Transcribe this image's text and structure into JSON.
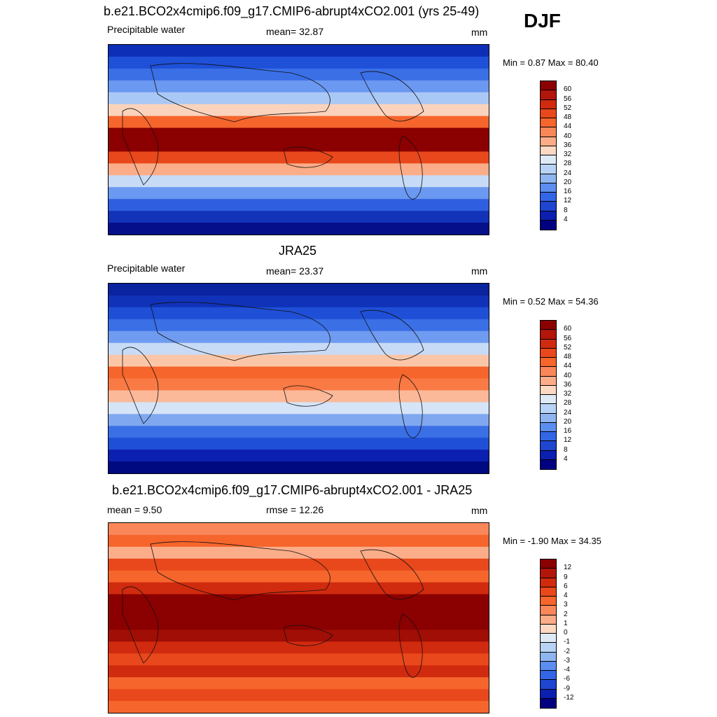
{
  "season": "DJF",
  "panels": [
    {
      "title": "b.e21.BCO2x4cmip6.f09_g17.CMIP6-abrupt4xCO2.001 (yrs 25-49)",
      "left_label": "Precipitable water",
      "stat_label": "mean=  32.87",
      "units": "mm",
      "minmax": "Min =   0.87 Max =  80.40",
      "colorbar": {
        "labels": [
          "60",
          "56",
          "52",
          "48",
          "44",
          "40",
          "36",
          "32",
          "28",
          "24",
          "20",
          "16",
          "12",
          "8",
          "4"
        ],
        "colors": [
          "#8b0000",
          "#b2150a",
          "#d02a0f",
          "#e8481b",
          "#f5652c",
          "#f9875a",
          "#fbac88",
          "#fdd9c4",
          "#deebf7",
          "#b8d3f5",
          "#8fb6f0",
          "#5b8ef0",
          "#3366e6",
          "#1f45d1",
          "#0b1fb0",
          "#000080"
        ]
      },
      "rows": [
        {
          "c": "#0d2fb8",
          "x0": 0,
          "x1": 100
        },
        {
          "c": "#1e50d8",
          "x0": 0,
          "x1": 100
        },
        {
          "c": "#3a6fe6",
          "x0": 0,
          "x1": 100
        },
        {
          "c": "#6b98f0",
          "x0": 0,
          "x1": 100
        },
        {
          "c": "#aac8f5",
          "x0": 0,
          "x1": 100
        },
        {
          "c": "#fbd3bc",
          "x0": 0,
          "x1": 100
        },
        {
          "c": "#f5652c",
          "x0": 0,
          "x1": 100
        },
        {
          "c": "#8b0000",
          "x0": 0,
          "x1": 100
        },
        {
          "c": "#8b0000",
          "x0": 0,
          "x1": 100
        },
        {
          "c": "#e8481b",
          "x0": 0,
          "x1": 100
        },
        {
          "c": "#fbac88",
          "x0": 0,
          "x1": 100
        },
        {
          "c": "#c7dbf7",
          "x0": 0,
          "x1": 100
        },
        {
          "c": "#6b98f0",
          "x0": 0,
          "x1": 100
        },
        {
          "c": "#2f5fe0",
          "x0": 0,
          "x1": 100
        },
        {
          "c": "#1233b8",
          "x0": 0,
          "x1": 100
        },
        {
          "c": "#050f8a",
          "x0": 0,
          "x1": 100
        }
      ]
    },
    {
      "title": "JRA25",
      "left_label": "Precipitable water",
      "stat_label": "mean=  23.37",
      "units": "mm",
      "minmax": "Min =   0.52 Max =  54.36",
      "colorbar": {
        "labels": [
          "60",
          "56",
          "52",
          "48",
          "44",
          "40",
          "36",
          "32",
          "28",
          "24",
          "20",
          "16",
          "12",
          "8",
          "4"
        ],
        "colors": [
          "#8b0000",
          "#b2150a",
          "#d02a0f",
          "#e8481b",
          "#f5652c",
          "#f9875a",
          "#fbac88",
          "#fdd9c4",
          "#deebf7",
          "#b8d3f5",
          "#8fb6f0",
          "#5b8ef0",
          "#3366e6",
          "#1f45d1",
          "#0b1fb0",
          "#000080"
        ]
      },
      "rows": [
        {
          "c": "#0a239e",
          "x0": 0,
          "x1": 100
        },
        {
          "c": "#0f32b8",
          "x0": 0,
          "x1": 100
        },
        {
          "c": "#1f4fd6",
          "x0": 0,
          "x1": 100
        },
        {
          "c": "#3a6fe6",
          "x0": 0,
          "x1": 100
        },
        {
          "c": "#6f9bf0",
          "x0": 0,
          "x1": 100
        },
        {
          "c": "#c7dbf7",
          "x0": 0,
          "x1": 100
        },
        {
          "c": "#fbc6a8",
          "x0": 0,
          "x1": 100
        },
        {
          "c": "#f5652c",
          "x0": 0,
          "x1": 100
        },
        {
          "c": "#f97a44",
          "x0": 0,
          "x1": 100
        },
        {
          "c": "#fbb999",
          "x0": 0,
          "x1": 100
        },
        {
          "c": "#d6e4f7",
          "x0": 0,
          "x1": 100
        },
        {
          "c": "#7fa8f0",
          "x0": 0,
          "x1": 100
        },
        {
          "c": "#3a6fe6",
          "x0": 0,
          "x1": 100
        },
        {
          "c": "#1f4fd6",
          "x0": 0,
          "x1": 100
        },
        {
          "c": "#0b1fb0",
          "x0": 0,
          "x1": 100
        },
        {
          "c": "#000a80",
          "x0": 0,
          "x1": 100
        }
      ]
    },
    {
      "title": "b.e21.BCO2x4cmip6.f09_g17.CMIP6-abrupt4xCO2.001 - JRA25",
      "left_label": "mean =   9.50",
      "stat_label": "rmse =  12.26",
      "units": "mm",
      "minmax": "Min =  -1.90 Max =  34.35",
      "colorbar": {
        "labels": [
          "12",
          "9",
          "6",
          "4",
          "3",
          "2",
          "1",
          "0",
          "-1",
          "-2",
          "-3",
          "-4",
          "-6",
          "-9",
          "-12"
        ],
        "colors": [
          "#8b0000",
          "#b2150a",
          "#d02a0f",
          "#e8481b",
          "#f5652c",
          "#f9875a",
          "#fbac88",
          "#fdd9c4",
          "#deebf7",
          "#b8d3f5",
          "#8fb6f0",
          "#5b8ef0",
          "#3366e6",
          "#1f45d1",
          "#0b1fb0",
          "#000080"
        ]
      },
      "rows": [
        {
          "c": "#f9875a",
          "x0": 0,
          "x1": 100
        },
        {
          "c": "#f5652c",
          "x0": 0,
          "x1": 100
        },
        {
          "c": "#fbac88",
          "x0": 0,
          "x1": 100
        },
        {
          "c": "#e8481b",
          "x0": 0,
          "x1": 100
        },
        {
          "c": "#f5652c",
          "x0": 0,
          "x1": 100
        },
        {
          "c": "#d02a0f",
          "x0": 0,
          "x1": 100
        },
        {
          "c": "#8b0000",
          "x0": 0,
          "x1": 100
        },
        {
          "c": "#8b0000",
          "x0": 0,
          "x1": 100
        },
        {
          "c": "#8b0000",
          "x0": 0,
          "x1": 100
        },
        {
          "c": "#a00e05",
          "x0": 0,
          "x1": 100
        },
        {
          "c": "#d02a0f",
          "x0": 0,
          "x1": 100
        },
        {
          "c": "#e8481b",
          "x0": 0,
          "x1": 100
        },
        {
          "c": "#d02a0f",
          "x0": 0,
          "x1": 100
        },
        {
          "c": "#f5652c",
          "x0": 0,
          "x1": 100
        },
        {
          "c": "#e8481b",
          "x0": 0,
          "x1": 100
        },
        {
          "c": "#f5652c",
          "x0": 0,
          "x1": 100
        }
      ]
    }
  ]
}
